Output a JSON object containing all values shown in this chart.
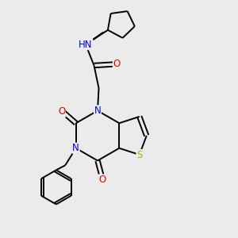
{
  "bg_color": "#ebebeb",
  "atom_colors": {
    "C": "#000000",
    "N": "#0000ee",
    "O": "#ee0000",
    "S": "#bbaa00",
    "H": "#2f8080"
  },
  "bond_color": "#000000",
  "bond_width": 1.4,
  "figsize": [
    3.0,
    3.0
  ],
  "dpi": 100,
  "xlim": [
    0,
    10
  ],
  "ylim": [
    0,
    10
  ]
}
